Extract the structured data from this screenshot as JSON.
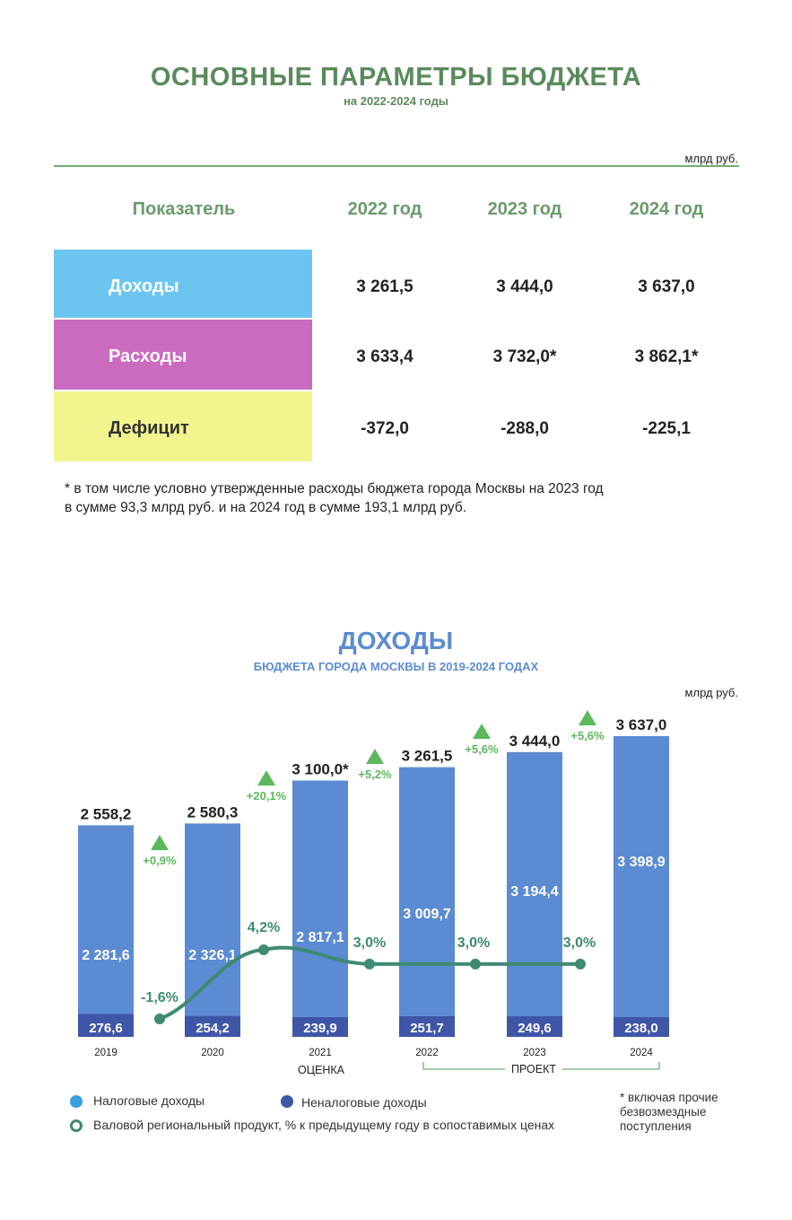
{
  "table": {
    "title": "ОСНОВНЫЕ ПАРАМЕТРЫ БЮДЖЕТА",
    "subtitle": "на 2022-2024 годы",
    "unit": "млрд руб.",
    "headers": [
      "Показатель",
      "2022 год",
      "2023 год",
      "2024 год"
    ],
    "rows": [
      {
        "label": "Доходы",
        "color": "#6cc5f0",
        "label_color": "#ffffff",
        "values": [
          "3 261,5",
          "3 444,0",
          "3 637,0"
        ]
      },
      {
        "label": "Расходы",
        "color": "#ca6bc0",
        "label_color": "#ffffff",
        "values": [
          "3 633,4",
          "3 732,0*",
          "3 862,1*"
        ]
      },
      {
        "label": "Дефицит",
        "color": "#f2f48e",
        "label_color": "#333333",
        "values": [
          "-372,0",
          "-288,0",
          "-225,1"
        ]
      }
    ],
    "note_line1": "* в том числе условно утвержденные расходы бюджета города Москвы на 2023 год",
    "note_line2": "в сумме 93,3 млрд руб. и на 2024 год в сумме 193,1 млрд руб."
  },
  "chart_meta": {
    "title": "ДОХОДЫ",
    "subtitle": "БЮДЖЕТА ГОРОДА МОСКВЫ В 2019-2024 ГОДАХ",
    "unit": "млрд руб.",
    "ocenka_label": "ОЦЕНКА",
    "project_label": "ПРОЕКТ",
    "legend": {
      "tax": "Налоговые доходы",
      "nontax": "Неналоговые доходы",
      "grp": "Валовой региональный продукт, % к предыдущему году в сопоставимых ценах"
    },
    "footnote_lines": [
      "* включая прочие",
      "безвозмездные",
      "поступления"
    ],
    "colors": {
      "tax": "#5b8bd3",
      "nontax": "#3e55a8",
      "grp": "#3f8a72",
      "growth": "#5cb85c",
      "tax_legend": "#3a9ee0"
    }
  },
  "chart_data": {
    "type": "bar",
    "categories": [
      "2019",
      "2020",
      "2021",
      "2022",
      "2023",
      "2024"
    ],
    "series": [
      {
        "name": "Налоговые доходы",
        "values": [
          2281.6,
          2326.1,
          2817.1,
          3009.7,
          3194.4,
          3398.9
        ],
        "labels": [
          "2 281,6",
          "2 326,1",
          "2 817,1",
          "3 009,7",
          "3 194,4",
          "3 398,9"
        ]
      },
      {
        "name": "Неналоговые доходы",
        "values": [
          276.6,
          254.2,
          239.9,
          251.7,
          249.6,
          238.0
        ],
        "labels": [
          "276,6",
          "254,2",
          "239,9",
          "251,7",
          "249,6",
          "238,0"
        ]
      }
    ],
    "totals": [
      2558.2,
      2580.3,
      3100.0,
      3261.5,
      3444.0,
      3637.0
    ],
    "total_labels": [
      "2 558,2",
      "2 580,3",
      "3 100,0*",
      "3 261,5",
      "3 444,0",
      "3 637,0"
    ],
    "growth_labels": [
      "+0,9%",
      "+20,1%",
      "+5,2%",
      "+5,6%",
      "+5,6%"
    ],
    "grp": {
      "name": "Валовой региональный продукт, % к предыдущему году в сопоставимых ценах",
      "values": [
        -1.6,
        4.2,
        3.0,
        3.0,
        3.0
      ],
      "labels": [
        "-1,6%",
        "4,2%",
        "3,0%",
        "3,0%",
        "3,0%"
      ]
    },
    "ylim": [
      0,
      3700
    ]
  }
}
